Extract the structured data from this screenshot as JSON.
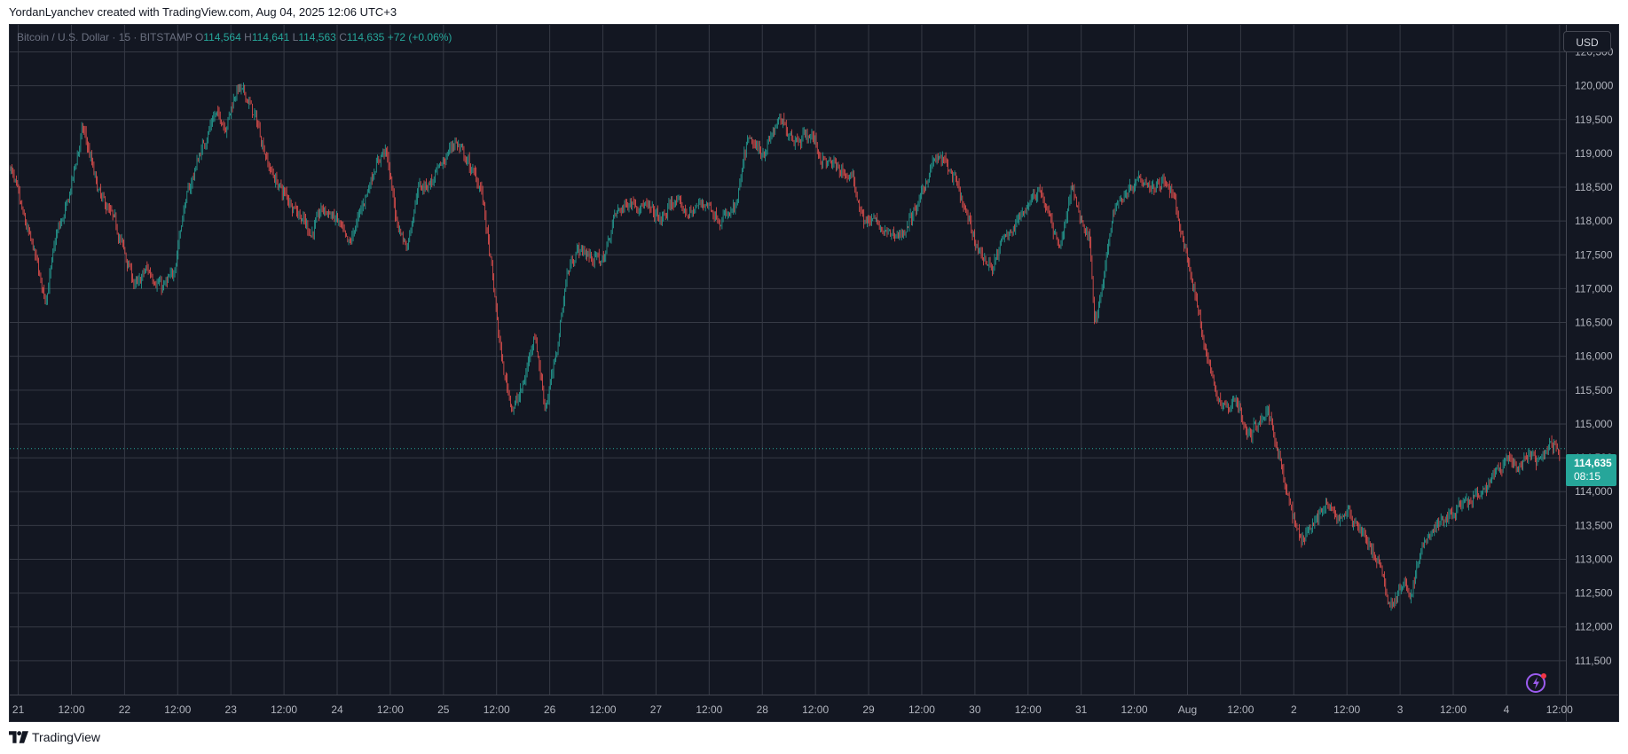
{
  "header": {
    "attribution": "YordanLyanchev created with TradingView.com, Aug 04, 2025 12:06 UTC+3"
  },
  "legend": {
    "symbol": "Bitcoin / U.S. Dollar · 15 · BITSTAMP",
    "o_label": "O",
    "o_value": "114,564",
    "h_label": "H",
    "h_value": "114,641",
    "l_label": "L",
    "l_value": "114,563",
    "c_label": "C",
    "c_value": "114,635",
    "change": "+72 (+0.06%)"
  },
  "currency_button": "USD",
  "last_price": {
    "price": "114,635",
    "countdown": "08:15"
  },
  "footer": {
    "brand": "TradingView"
  },
  "icons": {
    "brand_logo": "tradingview-logo-icon",
    "alert": "lightning-alert-icon"
  },
  "colors": {
    "up": "#26a69a",
    "down": "#ef5350",
    "background": "#131722",
    "grid": "#363a45"
  },
  "chart_data": {
    "type": "candlestick",
    "series_name": "Bitcoin / U.S. Dollar",
    "interval": "15",
    "ylim": [
      111000,
      120900
    ],
    "y_ticks": [
      111500,
      112000,
      112500,
      113000,
      113500,
      114000,
      114500,
      115000,
      115500,
      116000,
      116500,
      117000,
      117500,
      118000,
      118500,
      119000,
      119500,
      120000,
      120500
    ],
    "y_tick_labels": [
      "111,500",
      "112,000",
      "112,500",
      "113,000",
      "113,500",
      "114,000",
      "114,500",
      "115,000",
      "115,500",
      "116,000",
      "116,500",
      "117,000",
      "117,500",
      "118,000",
      "118,500",
      "119,000",
      "119,500",
      "120,000",
      "120,500"
    ],
    "x_range": [
      -0.08,
      14.56
    ],
    "x_ticks": [
      {
        "t": 0,
        "label": "21"
      },
      {
        "t": 0.5,
        "label": "12:00"
      },
      {
        "t": 1,
        "label": "22"
      },
      {
        "t": 1.5,
        "label": "12:00"
      },
      {
        "t": 2,
        "label": "23"
      },
      {
        "t": 2.5,
        "label": "12:00"
      },
      {
        "t": 3,
        "label": "24"
      },
      {
        "t": 3.5,
        "label": "12:00"
      },
      {
        "t": 4,
        "label": "25"
      },
      {
        "t": 4.5,
        "label": "12:00"
      },
      {
        "t": 5,
        "label": "26"
      },
      {
        "t": 5.5,
        "label": "12:00"
      },
      {
        "t": 6,
        "label": "27"
      },
      {
        "t": 6.5,
        "label": "12:00"
      },
      {
        "t": 7,
        "label": "28"
      },
      {
        "t": 7.5,
        "label": "12:00"
      },
      {
        "t": 8,
        "label": "29"
      },
      {
        "t": 8.5,
        "label": "12:00"
      },
      {
        "t": 9,
        "label": "30"
      },
      {
        "t": 9.5,
        "label": "12:00"
      },
      {
        "t": 10,
        "label": "31"
      },
      {
        "t": 10.5,
        "label": "12:00"
      },
      {
        "t": 11,
        "label": "Aug"
      },
      {
        "t": 11.5,
        "label": "12:00"
      },
      {
        "t": 12,
        "label": "2"
      },
      {
        "t": 12.5,
        "label": "12:00"
      },
      {
        "t": 13,
        "label": "3"
      },
      {
        "t": 13.5,
        "label": "12:00"
      },
      {
        "t": 14,
        "label": "4"
      },
      {
        "t": 14.5,
        "label": "12:00"
      }
    ],
    "last_price": 114635,
    "price_path": [
      [
        -0.08,
        118800
      ],
      [
        0.05,
        118000
      ],
      [
        0.15,
        117500
      ],
      [
        0.25,
        116800
      ],
      [
        0.35,
        117800
      ],
      [
        0.45,
        118200
      ],
      [
        0.6,
        119400
      ],
      [
        0.75,
        118400
      ],
      [
        0.9,
        118000
      ],
      [
        1.0,
        117500
      ],
      [
        1.1,
        117000
      ],
      [
        1.2,
        117300
      ],
      [
        1.35,
        117000
      ],
      [
        1.45,
        117200
      ],
      [
        1.55,
        118200
      ],
      [
        1.7,
        119000
      ],
      [
        1.85,
        119600
      ],
      [
        1.95,
        119400
      ],
      [
        2.05,
        120000
      ],
      [
        2.15,
        119800
      ],
      [
        2.25,
        119400
      ],
      [
        2.35,
        118800
      ],
      [
        2.45,
        118500
      ],
      [
        2.6,
        118200
      ],
      [
        2.75,
        117800
      ],
      [
        2.85,
        118200
      ],
      [
        3.0,
        118000
      ],
      [
        3.1,
        117600
      ],
      [
        3.2,
        118100
      ],
      [
        3.35,
        118800
      ],
      [
        3.45,
        119100
      ],
      [
        3.55,
        118000
      ],
      [
        3.65,
        117600
      ],
      [
        3.75,
        118500
      ],
      [
        3.9,
        118600
      ],
      [
        4.0,
        118900
      ],
      [
        4.1,
        119200
      ],
      [
        4.2,
        118900
      ],
      [
        4.35,
        118500
      ],
      [
        4.45,
        117200
      ],
      [
        4.55,
        115800
      ],
      [
        4.65,
        115200
      ],
      [
        4.75,
        115600
      ],
      [
        4.85,
        116400
      ],
      [
        4.95,
        115200
      ],
      [
        5.05,
        116000
      ],
      [
        5.15,
        117200
      ],
      [
        5.25,
        117600
      ],
      [
        5.35,
        117500
      ],
      [
        5.5,
        117400
      ],
      [
        5.6,
        118100
      ],
      [
        5.75,
        118300
      ],
      [
        5.9,
        118200
      ],
      [
        6.05,
        118000
      ],
      [
        6.15,
        118300
      ],
      [
        6.3,
        118100
      ],
      [
        6.45,
        118300
      ],
      [
        6.6,
        118000
      ],
      [
        6.75,
        118200
      ],
      [
        6.85,
        119200
      ],
      [
        7.0,
        119000
      ],
      [
        7.15,
        119500
      ],
      [
        7.3,
        119200
      ],
      [
        7.45,
        119300
      ],
      [
        7.55,
        118900
      ],
      [
        7.7,
        118800
      ],
      [
        7.85,
        118600
      ],
      [
        7.95,
        118000
      ],
      [
        8.05,
        118000
      ],
      [
        8.15,
        117800
      ],
      [
        8.3,
        117800
      ],
      [
        8.45,
        118200
      ],
      [
        8.6,
        118900
      ],
      [
        8.7,
        118900
      ],
      [
        8.8,
        118600
      ],
      [
        8.95,
        117900
      ],
      [
        9.05,
        117500
      ],
      [
        9.15,
        117300
      ],
      [
        9.25,
        117700
      ],
      [
        9.4,
        118000
      ],
      [
        9.5,
        118300
      ],
      [
        9.6,
        118500
      ],
      [
        9.7,
        118000
      ],
      [
        9.8,
        117600
      ],
      [
        9.9,
        118500
      ],
      [
        10.0,
        118000
      ],
      [
        10.08,
        117700
      ],
      [
        10.12,
        116400
      ],
      [
        10.2,
        117100
      ],
      [
        10.3,
        118200
      ],
      [
        10.45,
        118500
      ],
      [
        10.55,
        118700
      ],
      [
        10.65,
        118500
      ],
      [
        10.75,
        118600
      ],
      [
        10.85,
        118400
      ],
      [
        10.95,
        117700
      ],
      [
        11.05,
        117000
      ],
      [
        11.15,
        116200
      ],
      [
        11.25,
        115500
      ],
      [
        11.35,
        115200
      ],
      [
        11.45,
        115400
      ],
      [
        11.55,
        114800
      ],
      [
        11.65,
        115000
      ],
      [
        11.75,
        115200
      ],
      [
        11.85,
        114600
      ],
      [
        11.95,
        113800
      ],
      [
        12.05,
        113300
      ],
      [
        12.15,
        113500
      ],
      [
        12.3,
        113800
      ],
      [
        12.4,
        113600
      ],
      [
        12.5,
        113700
      ],
      [
        12.6,
        113500
      ],
      [
        12.7,
        113200
      ],
      [
        12.8,
        112900
      ],
      [
        12.9,
        112300
      ],
      [
        13.0,
        112600
      ],
      [
        13.1,
        112500
      ],
      [
        13.2,
        113200
      ],
      [
        13.35,
        113500
      ],
      [
        13.5,
        113700
      ],
      [
        13.6,
        113800
      ],
      [
        13.7,
        113900
      ],
      [
        13.8,
        114000
      ],
      [
        13.9,
        114300
      ],
      [
        14.0,
        114500
      ],
      [
        14.1,
        114300
      ],
      [
        14.2,
        114600
      ],
      [
        14.3,
        114400
      ],
      [
        14.4,
        114700
      ],
      [
        14.5,
        114635
      ]
    ],
    "grid": "on"
  }
}
